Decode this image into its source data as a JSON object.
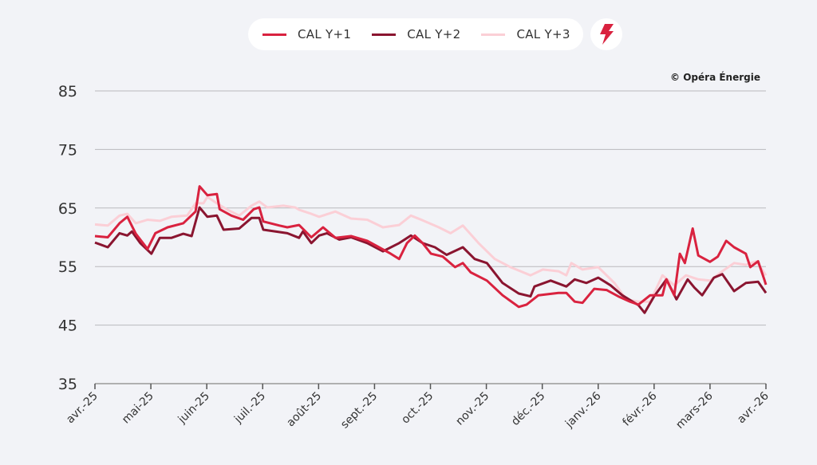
{
  "legend": {
    "items": [
      {
        "label": "CAL Y+1",
        "color": "#d9223f"
      },
      {
        "label": "CAL Y+2",
        "color": "#8a1530"
      },
      {
        "label": "CAL Y+3",
        "color": "#fbcfd6"
      }
    ],
    "icon": "lightning-bolt-icon"
  },
  "copyright": "© Opéra Énergie",
  "chart_data": {
    "type": "line",
    "title": "",
    "xlabel": "",
    "ylabel": "",
    "ylim": [
      35,
      85
    ],
    "yticks": [
      85,
      75,
      65,
      55,
      45,
      35
    ],
    "xlim_months": [
      0,
      12
    ],
    "xticks": [
      "avr.-25",
      "mai-25",
      "juin-25",
      "juil.-25",
      "août-25",
      "sept.-25",
      "oct.-25",
      "nov.-25",
      "déc.-25",
      "janv.-26",
      "févr.-26",
      "mars-26",
      "avr.-26"
    ],
    "grid": true,
    "legend_position": "top-center",
    "x_unit": "months since avr.-25",
    "series": [
      {
        "name": "CAL Y+1",
        "color": "#d9223f",
        "points": [
          [
            0,
            60.2
          ],
          [
            0.23,
            60
          ],
          [
            0.44,
            62.4
          ],
          [
            0.58,
            63.5
          ],
          [
            0.73,
            60.6
          ],
          [
            0.94,
            58
          ],
          [
            1.08,
            60.7
          ],
          [
            1.3,
            61.7
          ],
          [
            1.58,
            62.4
          ],
          [
            1.8,
            64.4
          ],
          [
            1.87,
            68.7
          ],
          [
            2.01,
            67.2
          ],
          [
            2.18,
            67.4
          ],
          [
            2.23,
            64.8
          ],
          [
            2.44,
            63.7
          ],
          [
            2.65,
            63
          ],
          [
            2.84,
            64.8
          ],
          [
            2.94,
            65.1
          ],
          [
            3.01,
            62.7
          ],
          [
            3.3,
            62
          ],
          [
            3.44,
            61.7
          ],
          [
            3.65,
            62.1
          ],
          [
            3.87,
            60
          ],
          [
            4.08,
            61.7
          ],
          [
            4.3,
            59.9
          ],
          [
            4.58,
            60.2
          ],
          [
            4.87,
            59.4
          ],
          [
            5.08,
            58.3
          ],
          [
            5.29,
            57.2
          ],
          [
            5.44,
            56.3
          ],
          [
            5.58,
            59
          ],
          [
            5.72,
            60.3
          ],
          [
            5.86,
            59
          ],
          [
            6.01,
            57.2
          ],
          [
            6.22,
            56.7
          ],
          [
            6.44,
            54.9
          ],
          [
            6.58,
            55.6
          ],
          [
            6.72,
            54
          ],
          [
            7.01,
            52.6
          ],
          [
            7.29,
            50.1
          ],
          [
            7.58,
            48.1
          ],
          [
            7.72,
            48.5
          ],
          [
            7.93,
            50.1
          ],
          [
            8.29,
            50.5
          ],
          [
            8.43,
            50.5
          ],
          [
            8.58,
            49
          ],
          [
            8.72,
            48.8
          ],
          [
            8.93,
            51.2
          ],
          [
            9.15,
            51
          ],
          [
            9.36,
            49.9
          ],
          [
            9.57,
            49
          ],
          [
            9.72,
            48.5
          ],
          [
            9.93,
            50.1
          ],
          [
            10.15,
            50.1
          ],
          [
            10.22,
            52.8
          ],
          [
            10.36,
            50.1
          ],
          [
            10.46,
            57.2
          ],
          [
            10.55,
            55.6
          ],
          [
            10.69,
            61.5
          ],
          [
            10.79,
            56.9
          ],
          [
            11,
            55.8
          ],
          [
            11.14,
            56.7
          ],
          [
            11.29,
            59.4
          ],
          [
            11.43,
            58.3
          ],
          [
            11.64,
            57.2
          ],
          [
            11.72,
            54.9
          ],
          [
            11.86,
            55.9
          ],
          [
            11.97,
            52.8
          ],
          [
            12,
            51.9
          ]
        ]
      },
      {
        "name": "CAL Y+2",
        "color": "#8a1530",
        "points": [
          [
            0,
            59.1
          ],
          [
            0.23,
            58.3
          ],
          [
            0.44,
            60.7
          ],
          [
            0.58,
            60.3
          ],
          [
            0.66,
            61
          ],
          [
            0.81,
            59
          ],
          [
            1.01,
            57.2
          ],
          [
            1.16,
            59.9
          ],
          [
            1.37,
            59.9
          ],
          [
            1.58,
            60.6
          ],
          [
            1.73,
            60.2
          ],
          [
            1.87,
            65.1
          ],
          [
            2.01,
            63.5
          ],
          [
            2.18,
            63.7
          ],
          [
            2.3,
            61.3
          ],
          [
            2.58,
            61.5
          ],
          [
            2.8,
            63.3
          ],
          [
            2.94,
            63.3
          ],
          [
            3.01,
            61.3
          ],
          [
            3.44,
            60.7
          ],
          [
            3.65,
            59.9
          ],
          [
            3.72,
            61
          ],
          [
            3.87,
            59
          ],
          [
            4.01,
            60.3
          ],
          [
            4.15,
            60.7
          ],
          [
            4.37,
            59.6
          ],
          [
            4.58,
            60
          ],
          [
            4.87,
            59
          ],
          [
            5.15,
            57.6
          ],
          [
            5.44,
            59
          ],
          [
            5.65,
            60.3
          ],
          [
            5.86,
            59
          ],
          [
            6.08,
            58.3
          ],
          [
            6.29,
            57
          ],
          [
            6.58,
            58.3
          ],
          [
            6.79,
            56.3
          ],
          [
            7.01,
            55.6
          ],
          [
            7.29,
            52.2
          ],
          [
            7.58,
            50.4
          ],
          [
            7.79,
            49.9
          ],
          [
            7.86,
            51.6
          ],
          [
            8.15,
            52.6
          ],
          [
            8.43,
            51.6
          ],
          [
            8.58,
            52.8
          ],
          [
            8.79,
            52.2
          ],
          [
            9,
            53.1
          ],
          [
            9.22,
            51.8
          ],
          [
            9.43,
            50.1
          ],
          [
            9.72,
            48.4
          ],
          [
            9.83,
            47.1
          ],
          [
            10,
            49.9
          ],
          [
            10.22,
            52.8
          ],
          [
            10.4,
            49.4
          ],
          [
            10.6,
            52.8
          ],
          [
            10.72,
            51.4
          ],
          [
            10.86,
            50.1
          ],
          [
            11.07,
            53.1
          ],
          [
            11.22,
            53.7
          ],
          [
            11.43,
            50.8
          ],
          [
            11.64,
            52.2
          ],
          [
            11.86,
            52.4
          ],
          [
            12,
            50.5
          ]
        ]
      },
      {
        "name": "CAL Y+3",
        "color": "#fbcfd6",
        "points": [
          [
            0,
            62.2
          ],
          [
            0.23,
            62
          ],
          [
            0.44,
            63.7
          ],
          [
            0.58,
            64
          ],
          [
            0.73,
            62.4
          ],
          [
            0.94,
            63
          ],
          [
            1.16,
            62.8
          ],
          [
            1.37,
            63.5
          ],
          [
            1.65,
            63.7
          ],
          [
            1.8,
            65.8
          ],
          [
            1.94,
            65.8
          ],
          [
            2.01,
            66.9
          ],
          [
            2.18,
            65.8
          ],
          [
            2.37,
            64.7
          ],
          [
            2.58,
            63.7
          ],
          [
            2.8,
            65.4
          ],
          [
            2.94,
            66.1
          ],
          [
            3.08,
            65.1
          ],
          [
            3.37,
            65.4
          ],
          [
            3.58,
            65.1
          ],
          [
            3.65,
            64.7
          ],
          [
            3.87,
            64
          ],
          [
            4.01,
            63.5
          ],
          [
            4.3,
            64.4
          ],
          [
            4.58,
            63.2
          ],
          [
            4.87,
            63
          ],
          [
            5.15,
            61.7
          ],
          [
            5.44,
            62.1
          ],
          [
            5.65,
            63.7
          ],
          [
            5.86,
            62.9
          ],
          [
            6.15,
            61.7
          ],
          [
            6.36,
            60.7
          ],
          [
            6.58,
            62
          ],
          [
            6.86,
            59
          ],
          [
            7.15,
            56.3
          ],
          [
            7.43,
            54.9
          ],
          [
            7.79,
            53.5
          ],
          [
            8.01,
            54.5
          ],
          [
            8.29,
            54.2
          ],
          [
            8.43,
            53.5
          ],
          [
            8.52,
            55.6
          ],
          [
            8.72,
            54.5
          ],
          [
            9,
            54.9
          ],
          [
            9.29,
            52.2
          ],
          [
            9.5,
            49.4
          ],
          [
            9.72,
            49
          ],
          [
            9.93,
            49
          ],
          [
            10.15,
            53.5
          ],
          [
            10.36,
            51.8
          ],
          [
            10.57,
            53.5
          ],
          [
            10.79,
            52.8
          ],
          [
            11,
            52.6
          ],
          [
            11.22,
            54.2
          ],
          [
            11.43,
            55.6
          ],
          [
            11.64,
            55.3
          ],
          [
            11.83,
            55.9
          ],
          [
            12,
            53.5
          ]
        ]
      }
    ]
  }
}
